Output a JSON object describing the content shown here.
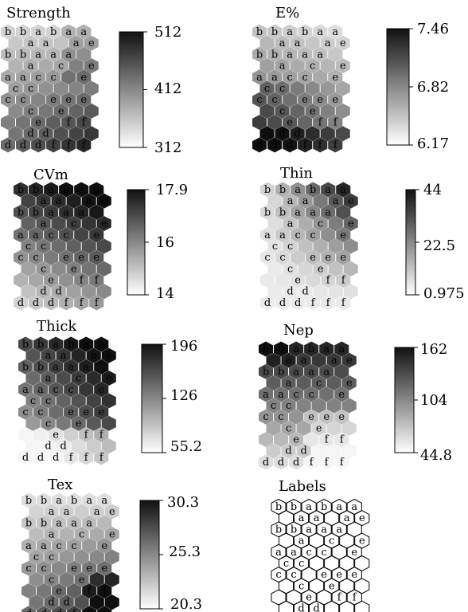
{
  "panels": [
    {
      "title": "Strength",
      "colorbar_ticks": [
        "512",
        "412",
        "312"
      ],
      "shading": "strength"
    },
    {
      "title": "E%",
      "colorbar_ticks": [
        "7.46",
        "6.82",
        "6.17"
      ],
      "shading": "elongation"
    },
    {
      "title": "CVm",
      "colorbar_ticks": [
        "17.9",
        "16",
        "14"
      ],
      "shading": "cvm"
    },
    {
      "title": "Thin",
      "colorbar_ticks": [
        "44",
        "22.5",
        "0.975"
      ],
      "shading": "thin"
    },
    {
      "title": "Thick",
      "colorbar_ticks": [
        "196",
        "126",
        "55.2"
      ],
      "shading": "thick"
    },
    {
      "title": "Nep",
      "colorbar_ticks": [
        "162",
        "104",
        "44.8"
      ],
      "shading": "nep"
    },
    {
      "title": "Tex",
      "colorbar_ticks": [
        "30.3",
        "25.3",
        "20.3"
      ],
      "shading": "tex"
    },
    {
      "title": "Labels",
      "colorbar_ticks": [],
      "shading": "labels"
    }
  ],
  "grid_labels": [
    [
      "b",
      "b",
      "a",
      "b",
      "a",
      "a"
    ],
    [
      "",
      "a",
      "a",
      "",
      "a",
      "e"
    ],
    [
      "b",
      "b",
      "a",
      "a",
      "a",
      ""
    ],
    [
      "",
      "a",
      "",
      "c",
      "",
      "e"
    ],
    [
      "a",
      "a",
      "c",
      "c",
      "",
      "e"
    ],
    [
      "c",
      "c",
      "",
      "",
      "",
      ""
    ],
    [
      "c",
      "c",
      "",
      "e",
      "e",
      "e"
    ],
    [
      "",
      "c",
      "",
      "e",
      "",
      ""
    ],
    [
      "",
      "",
      "e",
      "",
      "f",
      "f"
    ],
    [
      "",
      "d",
      "d",
      "",
      "",
      ""
    ],
    [
      "d",
      "d",
      "d",
      "f",
      "f",
      "f"
    ]
  ]
}
